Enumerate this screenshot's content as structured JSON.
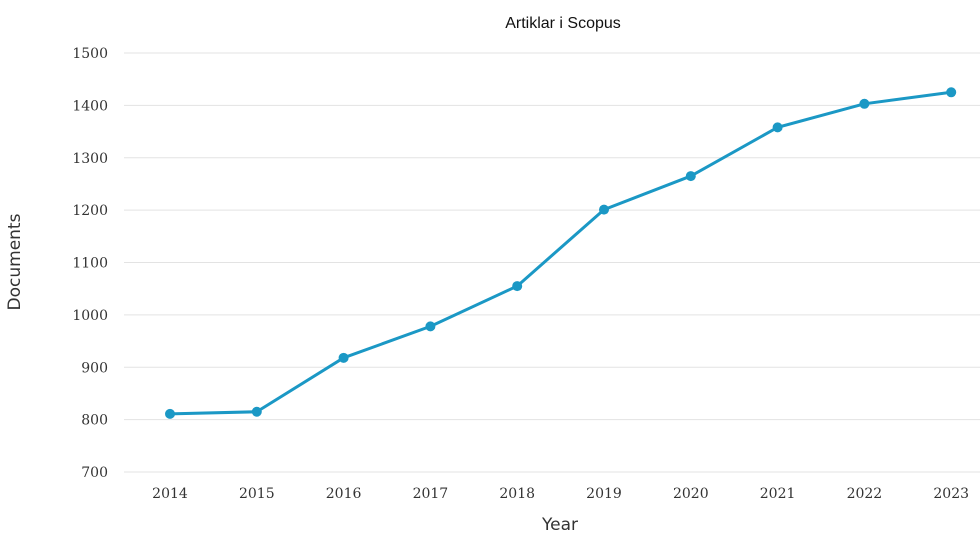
{
  "chart_data": {
    "type": "line",
    "title": "Artiklar i Scopus",
    "xlabel": "Year",
    "ylabel": "Documents",
    "categories": [
      "2014",
      "2015",
      "2016",
      "2017",
      "2018",
      "2019",
      "2020",
      "2021",
      "2022",
      "2023"
    ],
    "series": [
      {
        "values": [
          811,
          815,
          918,
          978,
          1055,
          1201,
          1265,
          1358,
          1403,
          1425
        ]
      }
    ],
    "ylim": [
      700,
      1500
    ],
    "yticks": [
      "700",
      "800",
      "900",
      "1000",
      "1100",
      "1200",
      "1300",
      "1400",
      "1500"
    ],
    "grid": true,
    "line_color": "#1b98c5"
  }
}
